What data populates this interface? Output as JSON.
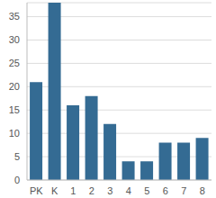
{
  "chart_data": {
    "type": "bar",
    "categories": [
      "PK",
      "K",
      "1",
      "2",
      "3",
      "4",
      "5",
      "6",
      "7",
      "8"
    ],
    "values": [
      21,
      38,
      16,
      18,
      12,
      4,
      4,
      8,
      8,
      9
    ],
    "color": "#346b93",
    "ylim": [
      0,
      38
    ],
    "yticks": [
      0,
      5,
      10,
      15,
      20,
      25,
      30,
      35
    ],
    "grid": true
  }
}
